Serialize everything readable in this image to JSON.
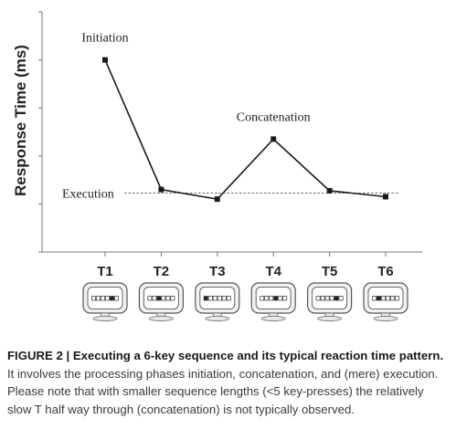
{
  "chart_data": {
    "type": "line",
    "title": "",
    "xlabel": "",
    "ylabel": "Response Time (ms)",
    "categories": [
      "T1",
      "T2",
      "T3",
      "T4",
      "T5",
      "T6"
    ],
    "values": [
      8.0,
      2.6,
      2.2,
      4.7,
      2.55,
      2.3
    ],
    "ylim": [
      0,
      10
    ],
    "grid": false,
    "legend": "none",
    "annotations": [
      {
        "text": "Initiation",
        "category": "T1"
      },
      {
        "text": "Concatenation",
        "category": "T4"
      }
    ],
    "reference_line": {
      "label": "Execution",
      "value": 2.45,
      "style": "dashed"
    },
    "key_displays": [
      {
        "category": "T1",
        "keys": [
          0,
          0,
          0,
          0,
          1,
          0
        ]
      },
      {
        "category": "T2",
        "keys": [
          0,
          0,
          1,
          0,
          0,
          0
        ]
      },
      {
        "category": "T3",
        "keys": [
          1,
          0,
          0,
          0,
          0,
          0
        ]
      },
      {
        "category": "T4",
        "keys": [
          0,
          0,
          0,
          1,
          0,
          0
        ]
      },
      {
        "category": "T5",
        "keys": [
          0,
          0,
          0,
          0,
          1,
          0
        ]
      },
      {
        "category": "T6",
        "keys": [
          0,
          1,
          0,
          0,
          0,
          0
        ]
      }
    ],
    "colors": {
      "line": "#1a1a1a",
      "axis": "#777777",
      "reference": "#555555"
    }
  },
  "caption": {
    "label": "FIGURE 2 | Executing a 6-key sequence and its typical reaction time pattern.",
    "text": " It involves the processing phases initiation, concatenation, and (mere) execution. Please note that with smaller sequence lengths (<5 key-presses) the relatively slow T half way through (concatenation) is not typically observed."
  }
}
